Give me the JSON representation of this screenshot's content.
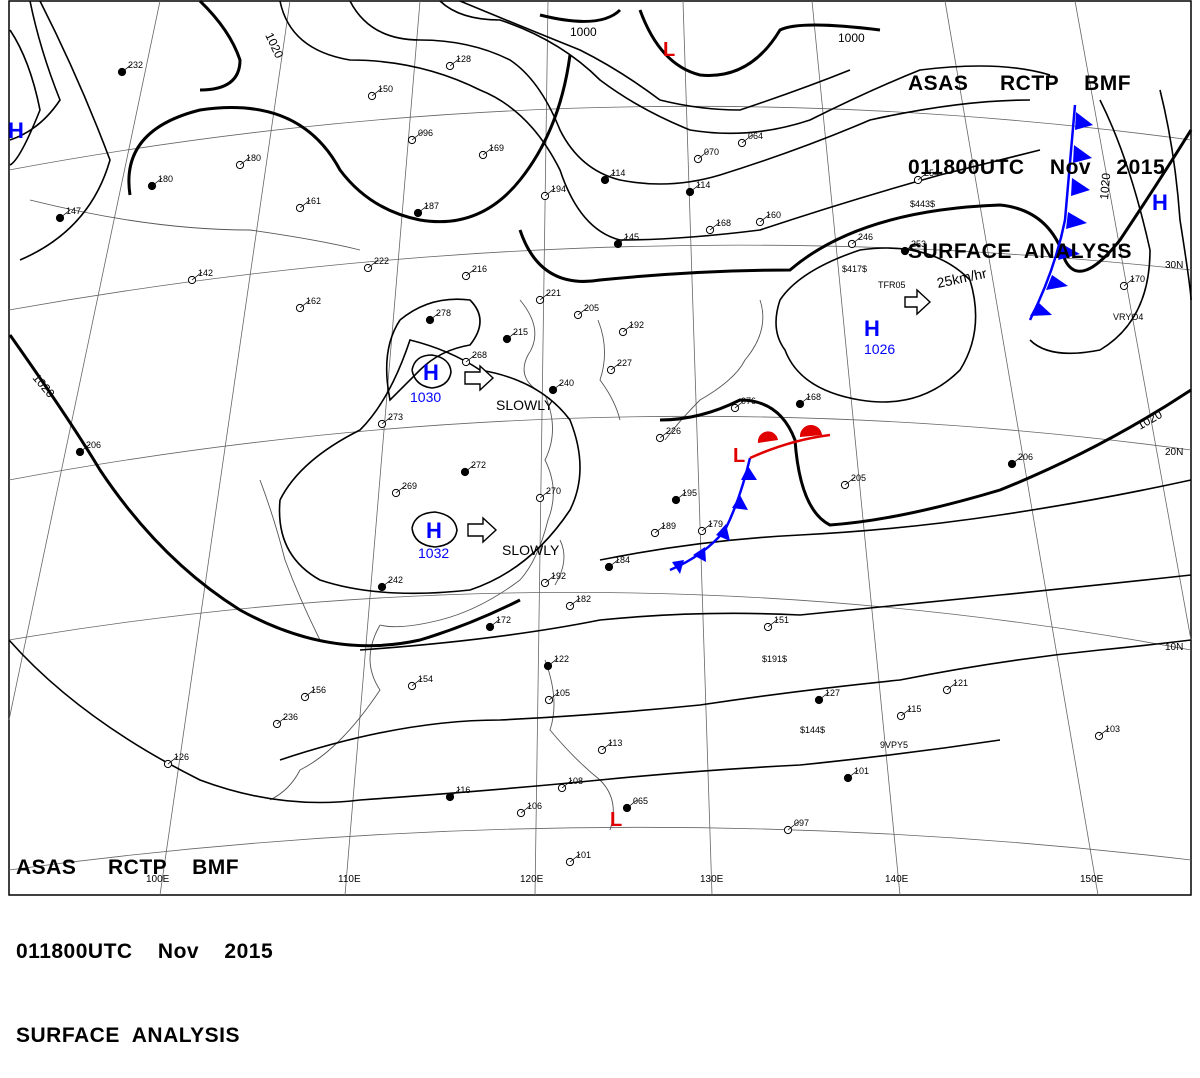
{
  "header": {
    "line1": "ASAS     RCTP    BMF",
    "line2": "011800UTC    Nov    2015",
    "line3": "SURFACE  ANALYSIS"
  },
  "footer": {
    "line1": "ASAS     RCTP    BMF",
    "line2": "011800UTC    Nov    2015",
    "line3": "SURFACE  ANALYSIS"
  },
  "colors": {
    "pressure_system": "#0000ff",
    "low_marker": "#e00000",
    "warm_front": "#e00000",
    "cold_front": "#0000ff"
  },
  "longitude_labels": [
    "100E",
    "110E",
    "120E",
    "130E",
    "140E",
    "150E"
  ],
  "latitude_labels": [
    "30N",
    "20N",
    "10N"
  ],
  "isobar_labels": [
    "1020",
    "1000",
    "1000",
    "1020",
    "1020",
    "1020"
  ],
  "highs": [
    {
      "symbol": "H",
      "value": "1030"
    },
    {
      "symbol": "H",
      "value": "1032"
    },
    {
      "symbol": "H",
      "value": "1026"
    },
    {
      "symbol": "H",
      "value": ""
    },
    {
      "symbol": "H",
      "value": ""
    }
  ],
  "lows": [
    "L",
    "L",
    "L"
  ],
  "motions": [
    "SLOWLY",
    "SLOWLY",
    "25km/hr"
  ],
  "station_values": [
    "232",
    "150",
    "128",
    "180",
    "180",
    "161",
    "187",
    "169",
    "194",
    "114",
    "070",
    "064",
    "114",
    "168",
    "160",
    "145",
    "222",
    "216",
    "147",
    "142",
    "162",
    "278",
    "221",
    "205",
    "215",
    "192",
    "268",
    "240",
    "227",
    "273",
    "272",
    "269",
    "270",
    "195",
    "189",
    "179",
    "184",
    "192",
    "182",
    "172",
    "154",
    "126",
    "122",
    "105",
    "113",
    "116",
    "106",
    "108",
    "065",
    "101",
    "151",
    "127",
    "115",
    "121",
    "101",
    "097",
    "103",
    "206",
    "205",
    "246",
    "253",
    "254",
    "170",
    "242",
    "236",
    "156",
    "206",
    "096",
    "076",
    "168",
    "226"
  ],
  "ship_ids": [
    "$417$",
    "$443$",
    "VRYO4",
    "$191$",
    "$144$",
    "9VPY5",
    "TFR05"
  ]
}
